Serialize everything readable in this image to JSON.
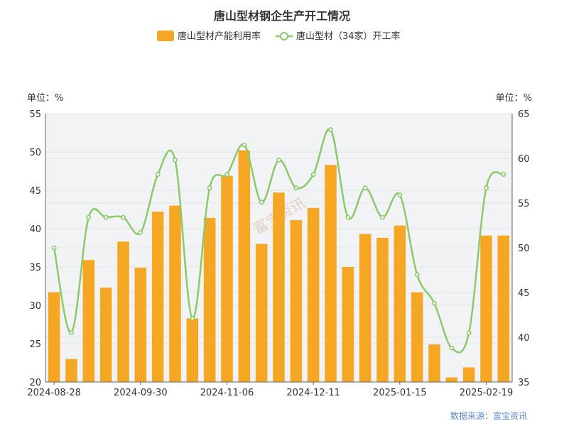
{
  "chart_data": {
    "type": "bar+line",
    "title": "唐山型材钢企生产开工情况",
    "legend": [
      "唐山型材产能利用率",
      "唐山型材（34家）开工率"
    ],
    "unit_left": "单位：%",
    "unit_right": "单位：%",
    "source": "数据来源：富宝资讯",
    "watermark": "富宝资讯",
    "x_tick_labels": [
      "2024-08-28",
      "2024-09-30",
      "2024-11-06",
      "2024-12-11",
      "2025-01-15",
      "2025-02-19"
    ],
    "x_tick_index": [
      0,
      5,
      10,
      15,
      20,
      25
    ],
    "y_left": {
      "min": 20,
      "max": 55,
      "ticks": [
        20,
        25,
        30,
        35,
        40,
        45,
        50,
        55
      ]
    },
    "y_right": {
      "min": 35,
      "max": 65,
      "ticks": [
        35,
        40,
        45,
        50,
        55,
        60,
        65
      ]
    },
    "n_points": 27,
    "series": [
      {
        "name": "唐山型材产能利用率",
        "type": "bar",
        "axis": "left",
        "color": "#f5a623",
        "values": [
          31.7,
          23.0,
          35.9,
          32.3,
          38.3,
          34.9,
          42.2,
          43.0,
          28.3,
          41.4,
          46.9,
          50.2,
          38.0,
          44.7,
          41.1,
          42.7,
          48.3,
          35.0,
          39.3,
          38.8,
          40.4,
          31.7,
          24.9,
          20.6,
          21.9,
          39.1,
          39.1
        ]
      },
      {
        "name": "唐山型材（34家）开工率",
        "type": "line",
        "axis": "right",
        "color": "#8bc96a",
        "values": [
          50.0,
          40.5,
          53.4,
          53.4,
          53.4,
          51.7,
          58.2,
          59.8,
          42.1,
          56.7,
          58.2,
          61.5,
          55.1,
          59.8,
          56.7,
          58.2,
          63.2,
          53.4,
          56.7,
          53.4,
          55.9,
          47.0,
          43.8,
          38.8,
          40.5,
          56.7,
          58.2
        ]
      }
    ],
    "grid": true
  }
}
